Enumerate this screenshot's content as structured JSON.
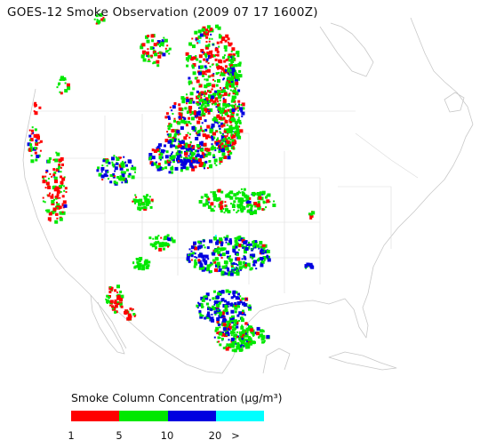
{
  "title": "GOES-12 Smoke Observation (2009 07 17  1600Z)",
  "legend": {
    "title": "Smoke Column Concentration (μg/m³)",
    "colors": [
      "#ff0000",
      "#00e800",
      "#0000e0",
      "#00ffff"
    ],
    "ticks": [
      "1",
      "5",
      "10",
      "20",
      ">"
    ]
  },
  "colors": {
    "coast": "#b0b0b0",
    "borders": "#d6d6d6"
  }
}
